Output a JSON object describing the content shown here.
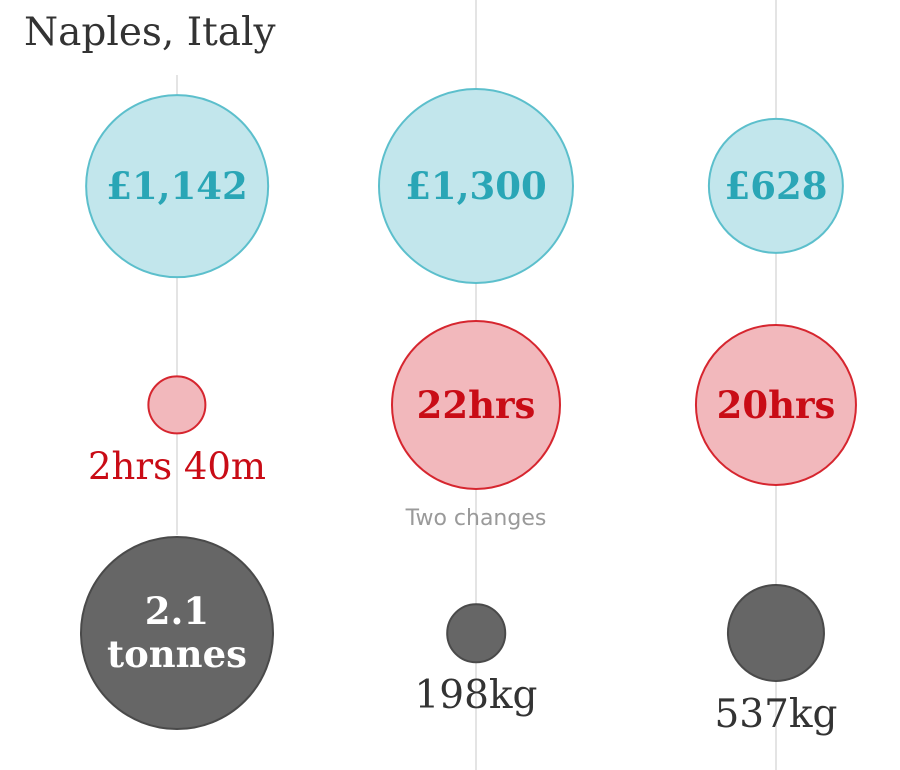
{
  "chart_data": {
    "type": "bubble",
    "title": "Naples, Italy",
    "columns": [
      {
        "cost": {
          "label": "£1,142",
          "value_gbp": 1142
        },
        "time": {
          "label": "2hrs 40m",
          "value_hours": 2.67,
          "label_outside": true
        },
        "carbon": {
          "label": "2.1 tonnes",
          "label_lines": [
            "2.1",
            "tonnes"
          ],
          "value_kg": 2100,
          "label_outside": false
        }
      },
      {
        "cost": {
          "label": "£1,300",
          "value_gbp": 1300
        },
        "time": {
          "label": "22hrs",
          "value_hours": 22,
          "label_outside": false
        },
        "note": "Two changes",
        "carbon": {
          "label": "198kg",
          "value_kg": 198,
          "label_outside": true
        }
      },
      {
        "cost": {
          "label": "£628",
          "value_gbp": 628
        },
        "time": {
          "label": "20hrs",
          "value_hours": 20,
          "label_outside": false
        },
        "carbon": {
          "label": "537kg",
          "value_kg": 537,
          "label_outside": true
        }
      }
    ]
  },
  "colors": {
    "cost_fill": "#c2e6ec",
    "cost_stroke": "#5cbfcc",
    "cost_text": "#2aa6b6",
    "time_fill": "#f2b8bc",
    "time_stroke": "#d6262f",
    "time_text": "#c90c16",
    "carbon_fill": "#666666",
    "carbon_text": "#ffffff"
  }
}
